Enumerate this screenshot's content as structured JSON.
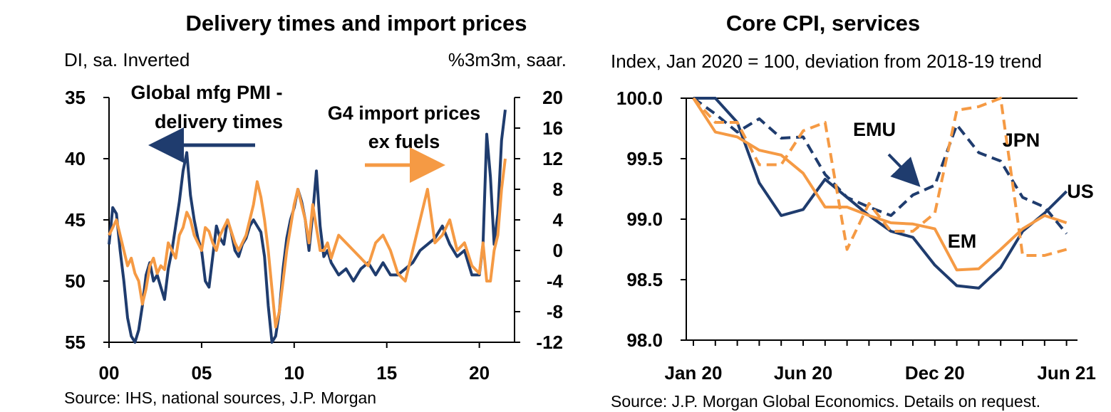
{
  "colors": {
    "navy": "#1f3c6e",
    "orange": "#f59a44",
    "axis": "#000000"
  },
  "chart_data": [
    {
      "type": "line",
      "title": "Delivery times and import prices",
      "left_axis_label": "DI, sa. Inverted",
      "right_axis_label": "%3m3m, saar.",
      "left_ticks": [
        "35",
        "40",
        "45",
        "50",
        "55"
      ],
      "right_ticks": [
        "20",
        "16",
        "12",
        "8",
        "4",
        "0",
        "-4",
        "-8",
        "-12"
      ],
      "x_ticks": [
        "00",
        "05",
        "10",
        "15",
        "20"
      ],
      "ylim_left": [
        55,
        35
      ],
      "ylim_right": [
        -12,
        20
      ],
      "xlim": [
        2000,
        2021.9
      ],
      "annotations": {
        "pmi": [
          "Global mfg PMI -",
          "delivery times"
        ],
        "imports": [
          "G4 import prices",
          "ex fuels"
        ]
      },
      "series": [
        {
          "name": "Global mfg PMI - delivery times",
          "axis": "left",
          "color": "navy",
          "x": [
            2000.0,
            2000.2,
            2000.4,
            2000.6,
            2000.8,
            2001.0,
            2001.2,
            2001.4,
            2001.6,
            2001.8,
            2002.0,
            2002.2,
            2002.4,
            2002.6,
            2002.8,
            2003.0,
            2003.2,
            2003.4,
            2003.6,
            2003.8,
            2004.0,
            2004.2,
            2004.4,
            2004.6,
            2004.8,
            2005.0,
            2005.2,
            2005.4,
            2005.6,
            2005.8,
            2006.0,
            2006.2,
            2006.4,
            2006.6,
            2006.8,
            2007.0,
            2007.2,
            2007.4,
            2007.6,
            2007.8,
            2008.0,
            2008.2,
            2008.4,
            2008.6,
            2008.8,
            2009.0,
            2009.2,
            2009.4,
            2009.6,
            2009.8,
            2010.0,
            2010.2,
            2010.4,
            2010.6,
            2010.8,
            2011.0,
            2011.2,
            2011.4,
            2011.6,
            2011.8,
            2012.0,
            2012.4,
            2012.8,
            2013.2,
            2013.6,
            2014.0,
            2014.4,
            2014.8,
            2015.2,
            2015.6,
            2016.0,
            2016.4,
            2016.8,
            2017.2,
            2017.6,
            2018.0,
            2018.4,
            2018.8,
            2019.2,
            2019.6,
            2020.0,
            2020.2,
            2020.4,
            2020.6,
            2020.8,
            2021.0,
            2021.2,
            2021.4
          ],
          "values": [
            47,
            44,
            44.5,
            47.5,
            50,
            53,
            54.5,
            55,
            54,
            52,
            49.5,
            48.5,
            50,
            49.5,
            50.5,
            51.5,
            49,
            47.5,
            45.5,
            43.5,
            41,
            39.5,
            43,
            45,
            46.5,
            47.5,
            50,
            50.5,
            48,
            45.5,
            46.5,
            47,
            45,
            46,
            47.5,
            48,
            47,
            46.5,
            45.5,
            45,
            45.5,
            46,
            48,
            52,
            55,
            54.5,
            52.5,
            49,
            46.5,
            45,
            44,
            42.5,
            43.5,
            45,
            47.5,
            44.5,
            41,
            45.5,
            48,
            47.5,
            48.5,
            49.5,
            49,
            50,
            49,
            48.5,
            49.5,
            48.5,
            49.5,
            49.5,
            49,
            48.5,
            47.5,
            47,
            46.5,
            45.5,
            47,
            48,
            47.5,
            49.5,
            49.5,
            47,
            38,
            41.5,
            47,
            44.5,
            38.5,
            36
          ]
        },
        {
          "name": "G4 import prices ex fuels",
          "axis": "right",
          "color": "orange",
          "x": [
            2000.0,
            2000.2,
            2000.4,
            2000.6,
            2000.8,
            2001.0,
            2001.2,
            2001.4,
            2001.6,
            2001.8,
            2002.0,
            2002.2,
            2002.4,
            2002.6,
            2002.8,
            2003.0,
            2003.2,
            2003.4,
            2003.6,
            2003.8,
            2004.0,
            2004.2,
            2004.4,
            2004.6,
            2004.8,
            2005.0,
            2005.2,
            2005.4,
            2005.6,
            2005.8,
            2006.0,
            2006.2,
            2006.4,
            2006.6,
            2006.8,
            2007.0,
            2007.2,
            2007.4,
            2007.6,
            2007.8,
            2008.0,
            2008.2,
            2008.4,
            2008.6,
            2008.8,
            2009.0,
            2009.2,
            2009.4,
            2009.6,
            2009.8,
            2010.0,
            2010.2,
            2010.4,
            2010.6,
            2010.8,
            2011.0,
            2011.2,
            2011.4,
            2011.6,
            2011.8,
            2012.0,
            2012.4,
            2012.8,
            2013.2,
            2013.6,
            2014.0,
            2014.4,
            2014.8,
            2015.2,
            2015.6,
            2016.0,
            2016.4,
            2016.8,
            2017.2,
            2017.6,
            2018.0,
            2018.4,
            2018.8,
            2019.2,
            2019.6,
            2020.0,
            2020.2,
            2020.4,
            2020.6,
            2020.8,
            2021.0,
            2021.2,
            2021.4
          ],
          "values": [
            2,
            3,
            4,
            2,
            0,
            -2,
            -1,
            -3,
            -4,
            -7,
            -5,
            -2,
            -1,
            -3,
            -2,
            -2.5,
            1,
            0,
            -1,
            2,
            3,
            5,
            4,
            2,
            1,
            0,
            3,
            2.5,
            1,
            0,
            2,
            3,
            4,
            2.5,
            1,
            0,
            1,
            2,
            4,
            6,
            9,
            7,
            4,
            0,
            -5,
            -10,
            -8,
            -4,
            0,
            3,
            6,
            8,
            6,
            4,
            1,
            6,
            3,
            0,
            0,
            1,
            -1,
            2,
            1,
            0,
            -1,
            -2,
            1,
            2,
            0,
            -3,
            -4,
            0,
            4,
            8,
            1,
            2,
            4,
            0,
            1,
            -2,
            -3,
            1,
            -4,
            -4,
            0,
            2,
            8,
            12
          ]
        }
      ]
    },
    {
      "type": "line",
      "title": "Core CPI, services",
      "subtitle": "Index, Jan 2020 = 100, deviation from 2018-19 trend",
      "y_ticks": [
        "100.0",
        "99.5",
        "99.0",
        "98.5",
        "98.0"
      ],
      "x_ticks": [
        "Jan 20",
        "Jun 20",
        "Dec 20",
        "Jun 21"
      ],
      "ylim": [
        98.0,
        100.0
      ],
      "x_months_from_jan20": [
        0,
        1,
        2,
        3,
        4,
        5,
        6,
        7,
        8,
        9,
        10,
        11,
        12,
        13,
        14,
        15,
        16,
        17
      ],
      "labels": {
        "emu": "EMU",
        "jpn": "JPN",
        "us": "US",
        "em": "EM"
      },
      "series": [
        {
          "name": "US",
          "style": "solid",
          "color": "navy",
          "values": [
            100.0,
            100.0,
            99.8,
            99.3,
            99.03,
            99.08,
            99.33,
            99.18,
            99.03,
            98.9,
            98.85,
            98.62,
            98.45,
            98.43,
            98.6,
            98.9,
            99.05,
            99.23
          ]
        },
        {
          "name": "EM",
          "style": "solid",
          "color": "orange",
          "values": [
            100.0,
            99.72,
            99.68,
            99.57,
            99.53,
            99.38,
            99.1,
            99.1,
            99.03,
            98.97,
            98.96,
            98.92,
            98.58,
            98.59,
            98.75,
            98.92,
            99.03,
            98.97
          ]
        },
        {
          "name": "EMU",
          "style": "dashed",
          "color": "navy",
          "values": [
            100.0,
            99.87,
            99.72,
            99.83,
            99.67,
            99.68,
            99.37,
            99.18,
            99.1,
            99.03,
            99.2,
            99.28,
            99.78,
            99.55,
            99.48,
            99.18,
            99.1,
            98.88
          ]
        },
        {
          "name": "JPN",
          "style": "dashed",
          "color": "orange",
          "values": [
            100.0,
            99.8,
            99.8,
            99.45,
            99.45,
            99.73,
            99.8,
            98.75,
            99.13,
            98.9,
            98.9,
            99.05,
            99.9,
            99.93,
            100.0,
            98.7,
            98.7,
            98.75
          ]
        }
      ]
    }
  ],
  "sources": {
    "left": "Source: IHS, national sources, J.P. Morgan",
    "right": "Source: J.P. Morgan Global Economics. Details on request."
  }
}
